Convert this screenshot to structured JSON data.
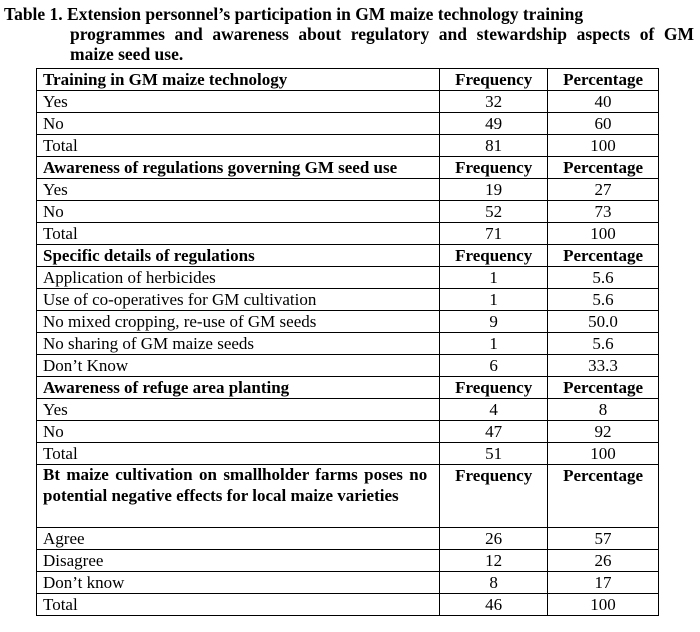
{
  "caption": {
    "lead": "Table 1. Extension personnel’s participation in GM maize technology training",
    "cont": "programmes and awareness about regulatory and stewardship aspects of GM maize seed use."
  },
  "sections": [
    {
      "heading": "Training in GM maize technology",
      "col_freq": "Frequency",
      "col_pct": "Percentage",
      "rows": [
        {
          "label": "Yes",
          "freq": "32",
          "pct": "40"
        },
        {
          "label": "No",
          "freq": "49",
          "pct": "60"
        },
        {
          "label": "Total",
          "freq": "81",
          "pct": "100"
        }
      ]
    },
    {
      "heading": "Awareness of regulations governing GM seed use",
      "col_freq": "Frequency",
      "col_pct": "Percentage",
      "rows": [
        {
          "label": "Yes",
          "freq": "19",
          "pct": "27"
        },
        {
          "label": "No",
          "freq": "52",
          "pct": "73"
        },
        {
          "label": "Total",
          "freq": "71",
          "pct": "100"
        }
      ]
    },
    {
      "heading": "Specific details of regulations",
      "col_freq": "Frequency",
      "col_pct": "Percentage",
      "rows": [
        {
          "label": "Application of herbicides",
          "freq": "1",
          "pct": "5.6"
        },
        {
          "label": "Use of co-operatives for GM cultivation",
          "freq": "1",
          "pct": "5.6"
        },
        {
          "label": "No mixed cropping, re-use of GM seeds",
          "freq": "9",
          "pct": "50.0"
        },
        {
          "label": "No sharing of GM maize seeds",
          "freq": "1",
          "pct": "5.6"
        },
        {
          "label": "Don’t Know",
          "freq": "6",
          "pct": "33.3"
        }
      ]
    },
    {
      "heading": "Awareness of refuge area planting",
      "col_freq": "Frequency",
      "col_pct": "Percentage",
      "rows": [
        {
          "label": "Yes",
          "freq": "4",
          "pct": "8"
        },
        {
          "label": "No",
          "freq": "47",
          "pct": "92"
        },
        {
          "label": "Total",
          "freq": "51",
          "pct": "100"
        }
      ]
    },
    {
      "heading": "Bt maize cultivation on smallholder farms poses no potential negative effects for local maize varieties",
      "col_freq": "Frequency",
      "col_pct": "Percentage",
      "rows": [
        {
          "label": "Agree",
          "freq": "26",
          "pct": "57"
        },
        {
          "label": "Disagree",
          "freq": "12",
          "pct": "26"
        },
        {
          "label": "Don’t know",
          "freq": "8",
          "pct": "17"
        },
        {
          "label": "Total",
          "freq": "46",
          "pct": "100"
        }
      ]
    }
  ]
}
